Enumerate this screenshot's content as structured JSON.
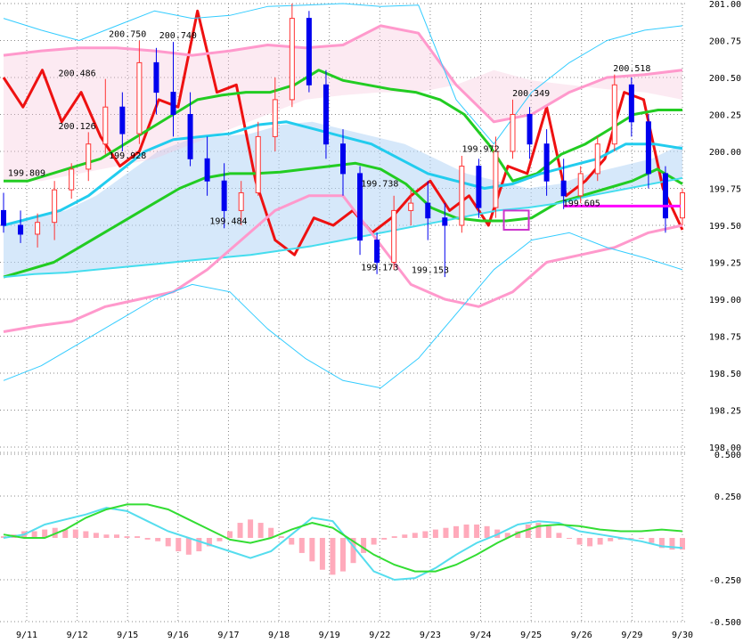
{
  "chart_data": [
    {
      "type": "candlestick",
      "title": "",
      "xlabel": "",
      "ylabel": "",
      "ylim": [
        198.0,
        201.0
      ],
      "y_ticks": [
        "201.00",
        "200.75",
        "200.50",
        "200.25",
        "200.00",
        "199.75",
        "199.50",
        "199.25",
        "199.00",
        "198.75",
        "198.50",
        "198.25",
        "198.00"
      ],
      "x_ticks": [
        "9/11",
        "9/12",
        "9/15",
        "9/16",
        "9/17",
        "9/18",
        "9/19",
        "9/22",
        "9/23",
        "9/24",
        "9/25",
        "9/26",
        "9/29",
        "9/30"
      ],
      "grid": true,
      "annotations": [
        {
          "text": "199.809",
          "x": "9/11",
          "y": 199.809
        },
        {
          "text": "200.126",
          "x": "9/12",
          "y": 200.126
        },
        {
          "text": "200.486",
          "x": "9/12",
          "y": 200.486
        },
        {
          "text": "200.750",
          "x": "9/15",
          "y": 200.75
        },
        {
          "text": "199.928",
          "x": "9/15",
          "y": 199.928
        },
        {
          "text": "200.740",
          "x": "9/16",
          "y": 200.74
        },
        {
          "text": "199.484",
          "x": "9/17",
          "y": 199.484
        },
        {
          "text": "199.173",
          "x": "9/22",
          "y": 199.173
        },
        {
          "text": "199.738",
          "x": "9/22",
          "y": 199.738
        },
        {
          "text": "199.153",
          "x": "9/23",
          "y": 199.153
        },
        {
          "text": "199.972",
          "x": "9/24",
          "y": 199.972
        },
        {
          "text": "200.349",
          "x": "9/25",
          "y": 200.349
        },
        {
          "text": "199.605",
          "x": "9/26",
          "y": 199.605
        },
        {
          "text": "200.518",
          "x": "9/29",
          "y": 200.518
        }
      ],
      "horizontal_marker": {
        "value": 199.63,
        "from": "9/26",
        "to": "9/30",
        "color": "#ff00ff"
      },
      "box_marker": {
        "x": "9/24",
        "y_low": 199.47,
        "y_high": 199.6,
        "color": "#cc33cc"
      },
      "series": [
        {
          "kind": "candles",
          "bull_color": "#ff3333",
          "bear_color": "#0000ee",
          "ohlc": [
            [
              199.6,
              199.72,
              199.45,
              199.5
            ],
            [
              199.5,
              199.6,
              199.38,
              199.44
            ],
            [
              199.44,
              199.58,
              199.35,
              199.52
            ],
            [
              199.52,
              199.8,
              199.4,
              199.74
            ],
            [
              199.74,
              199.92,
              199.68,
              199.88
            ],
            [
              199.88,
              200.13,
              199.8,
              200.05
            ],
            [
              200.05,
              200.49,
              199.98,
              200.3
            ],
            [
              200.3,
              200.4,
              200.0,
              200.12
            ],
            [
              200.12,
              200.75,
              200.05,
              200.6
            ],
            [
              200.6,
              200.7,
              200.25,
              200.4
            ],
            [
              200.4,
              200.74,
              200.1,
              200.25
            ],
            [
              200.25,
              200.4,
              199.9,
              199.95
            ],
            [
              199.95,
              200.1,
              199.7,
              199.8
            ],
            [
              199.8,
              199.92,
              199.48,
              199.6
            ],
            [
              199.6,
              199.8,
              199.5,
              199.72
            ],
            [
              199.72,
              200.2,
              199.7,
              200.1
            ],
            [
              200.1,
              200.5,
              200.0,
              200.35
            ],
            [
              200.35,
              201.0,
              200.3,
              200.9
            ],
            [
              200.9,
              200.95,
              200.4,
              200.45
            ],
            [
              200.45,
              200.55,
              199.95,
              200.05
            ],
            [
              200.05,
              200.15,
              199.7,
              199.85
            ],
            [
              199.85,
              199.9,
              199.3,
              199.4
            ],
            [
              199.4,
              199.45,
              199.17,
              199.25
            ],
            [
              199.25,
              199.7,
              199.2,
              199.6
            ],
            [
              199.6,
              199.74,
              199.5,
              199.65
            ],
            [
              199.65,
              199.8,
              199.4,
              199.55
            ],
            [
              199.55,
              199.65,
              199.15,
              199.5
            ],
            [
              199.5,
              199.97,
              199.45,
              199.9
            ],
            [
              199.9,
              199.95,
              199.55,
              199.62
            ],
            [
              199.62,
              200.1,
              199.55,
              200.0
            ],
            [
              200.0,
              200.35,
              199.95,
              200.25
            ],
            [
              200.25,
              200.3,
              199.95,
              200.05
            ],
            [
              200.05,
              200.15,
              199.7,
              199.8
            ],
            [
              199.8,
              199.95,
              199.61,
              199.7
            ],
            [
              199.7,
              199.9,
              199.65,
              199.85
            ],
            [
              199.85,
              200.1,
              199.8,
              200.05
            ],
            [
              200.05,
              200.52,
              200.0,
              200.45
            ],
            [
              200.45,
              200.5,
              200.1,
              200.2
            ],
            [
              200.2,
              200.25,
              199.75,
              199.85
            ],
            [
              199.85,
              199.9,
              199.45,
              199.55
            ],
            [
              199.55,
              199.75,
              199.5,
              199.72
            ]
          ]
        },
        {
          "kind": "line",
          "color": "#ee1111",
          "width": 3,
          "values": [
            200.5,
            200.3,
            200.55,
            200.2,
            200.4,
            200.1,
            199.9,
            200.0,
            200.35,
            200.3,
            200.95,
            200.4,
            200.45,
            199.8,
            199.4,
            199.3,
            199.55,
            199.5,
            199.6,
            199.45,
            199.55,
            199.7,
            199.8,
            199.6,
            199.7,
            199.5,
            199.9,
            199.85,
            200.3,
            199.7,
            199.8,
            199.95,
            200.4,
            200.35,
            199.75,
            199.47
          ]
        },
        {
          "kind": "line",
          "color": "#22cc22",
          "width": 3,
          "values": [
            199.8,
            199.8,
            199.85,
            199.9,
            199.95,
            200.05,
            200.15,
            200.25,
            200.35,
            200.38,
            200.4,
            200.4,
            200.45,
            200.55,
            200.48,
            200.45,
            200.42,
            200.4,
            200.35,
            200.25,
            200.05,
            199.8,
            199.85,
            199.98,
            200.05,
            200.15,
            200.25,
            200.28,
            200.28
          ]
        },
        {
          "kind": "line",
          "color": "#22cc22",
          "width": 3,
          "values": [
            199.15,
            199.2,
            199.25,
            199.35,
            199.45,
            199.55,
            199.65,
            199.75,
            199.82,
            199.85,
            199.85,
            199.86,
            199.88,
            199.9,
            199.92,
            199.88,
            199.78,
            199.62,
            199.55,
            199.53,
            199.53,
            199.55,
            199.65,
            199.7,
            199.75,
            199.8,
            199.88,
            199.78
          ]
        },
        {
          "kind": "line",
          "color": "#22ccee",
          "width": 3,
          "values": [
            199.5,
            199.55,
            199.6,
            199.7,
            199.85,
            200.0,
            200.08,
            200.1,
            200.12,
            200.18,
            200.2,
            200.15,
            200.1,
            200.05,
            199.95,
            199.85,
            199.8,
            199.75,
            199.78,
            199.85,
            199.9,
            199.95,
            200.05,
            200.05,
            200.02
          ]
        },
        {
          "kind": "line",
          "color": "#44ddee",
          "width": 2,
          "values": [
            199.15,
            199.17,
            199.18,
            199.2,
            199.22,
            199.24,
            199.26,
            199.28,
            199.3,
            199.33,
            199.36,
            199.4,
            199.44,
            199.48,
            199.52,
            199.56,
            199.6,
            199.62,
            199.65,
            199.7,
            199.74,
            199.78,
            199.82
          ]
        },
        {
          "kind": "line",
          "color": "#ff99cc",
          "width": 3,
          "values": [
            200.65,
            200.68,
            200.7,
            200.7,
            200.68,
            200.65,
            200.68,
            200.72,
            200.7,
            200.72,
            200.85,
            200.8,
            200.45,
            200.2,
            200.25,
            200.4,
            200.5,
            200.52,
            200.55
          ]
        },
        {
          "kind": "line",
          "color": "#ff99cc",
          "width": 3,
          "values": [
            198.78,
            198.82,
            198.85,
            198.95,
            199.0,
            199.05,
            199.2,
            199.4,
            199.6,
            199.7,
            199.7,
            199.4,
            199.1,
            199.0,
            198.95,
            199.05,
            199.25,
            199.3,
            199.35,
            199.45,
            199.5
          ]
        },
        {
          "kind": "line",
          "color": "#33ccff",
          "width": 1,
          "values": [
            200.9,
            200.82,
            200.75,
            200.85,
            200.95,
            200.9,
            200.92,
            200.98,
            200.99,
            201.0,
            200.98,
            200.99,
            200.35,
            200.05,
            200.4,
            200.6,
            200.75,
            200.82,
            200.85
          ]
        },
        {
          "kind": "line",
          "color": "#33ccff",
          "width": 1,
          "values": [
            198.45,
            198.55,
            198.7,
            198.85,
            199.0,
            199.1,
            199.05,
            198.8,
            198.6,
            198.45,
            198.4,
            198.6,
            198.9,
            199.2,
            199.4,
            199.45,
            199.35,
            199.28,
            199.2
          ]
        }
      ],
      "cloud": {
        "upper_color": "#b5d6f5",
        "lower_color": "#f7c3d9"
      }
    },
    {
      "type": "macd",
      "title": "",
      "xlabel": "",
      "ylabel": "",
      "ylim": [
        -0.5,
        0.5
      ],
      "y_ticks": [
        "0.500",
        "0.250",
        "-0.250",
        "-0.500"
      ],
      "grid": true,
      "series": [
        {
          "kind": "histogram",
          "color": "#ffaabb",
          "values": [
            0.01,
            0.02,
            0.04,
            0.04,
            0.05,
            0.06,
            0.05,
            0.05,
            0.04,
            0.03,
            0.02,
            0.02,
            0.01,
            0.01,
            -0.01,
            -0.02,
            -0.05,
            -0.08,
            -0.1,
            -0.08,
            -0.05,
            -0.02,
            0.04,
            0.09,
            0.11,
            0.09,
            0.06,
            0.01,
            -0.04,
            -0.09,
            -0.14,
            -0.19,
            -0.22,
            -0.2,
            -0.15,
            -0.09,
            -0.04,
            -0.01,
            0.01,
            0.02,
            0.03,
            0.04,
            0.05,
            0.06,
            0.07,
            0.08,
            0.08,
            0.07,
            0.05,
            0.03,
            0.04,
            0.08,
            0.09,
            0.07,
            0.03,
            0.0,
            -0.04,
            -0.05,
            -0.04,
            -0.02,
            -0.01,
            0.0,
            0.0,
            -0.03,
            -0.06,
            -0.07,
            -0.07
          ]
        },
        {
          "kind": "line",
          "color": "#55ddee",
          "width": 2,
          "values": [
            0.0,
            0.02,
            0.08,
            0.11,
            0.14,
            0.18,
            0.16,
            0.1,
            0.04,
            0.0,
            -0.04,
            -0.08,
            -0.12,
            -0.08,
            0.02,
            0.12,
            0.1,
            -0.05,
            -0.2,
            -0.25,
            -0.24,
            -0.18,
            -0.1,
            -0.03,
            0.02,
            0.08,
            0.1,
            0.09,
            0.04,
            0.02,
            0.0,
            -0.02,
            -0.05,
            -0.06
          ]
        },
        {
          "kind": "line",
          "color": "#33dd33",
          "width": 2,
          "values": [
            0.02,
            0.0,
            0.0,
            0.05,
            0.12,
            0.17,
            0.2,
            0.2,
            0.17,
            0.11,
            0.05,
            -0.01,
            -0.03,
            0.0,
            0.05,
            0.09,
            0.06,
            -0.02,
            -0.1,
            -0.16,
            -0.2,
            -0.2,
            -0.16,
            -0.1,
            -0.03,
            0.03,
            0.07,
            0.08,
            0.07,
            0.05,
            0.04,
            0.04,
            0.05,
            0.04
          ]
        }
      ]
    }
  ]
}
